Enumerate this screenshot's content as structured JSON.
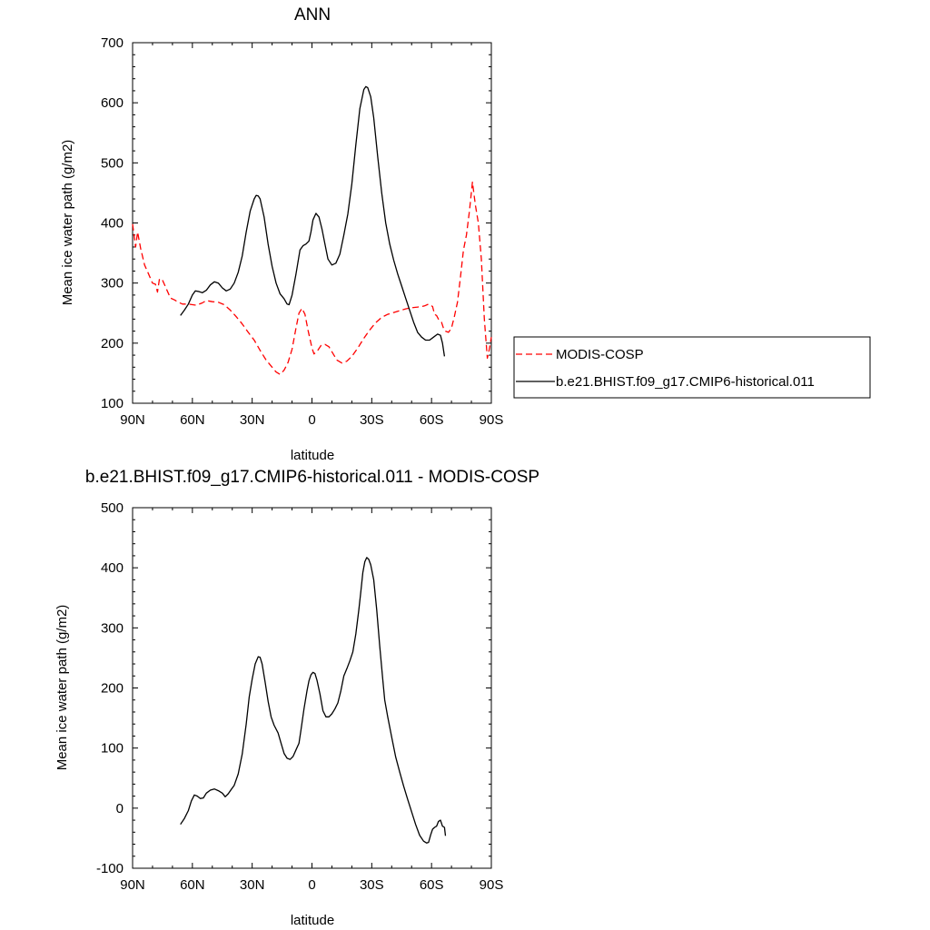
{
  "chart_data": [
    {
      "type": "line",
      "title": "ANN",
      "xlabel": "latitude",
      "ylabel": "Mean ice water path (g/m2)",
      "xlim": [
        90,
        -90
      ],
      "ylim": [
        100,
        700
      ],
      "x_ticks": [
        90,
        60,
        30,
        0,
        -30,
        -60,
        -90
      ],
      "x_tick_labels": [
        "90N",
        "60N",
        "30N",
        "0",
        "30S",
        "60S",
        "90S"
      ],
      "y_ticks": [
        100,
        200,
        300,
        400,
        500,
        600,
        700
      ],
      "y_tick_labels": [
        "100",
        "200",
        "300",
        "400",
        "500",
        "600",
        "700"
      ],
      "grid": false,
      "legend_position": "right",
      "series": [
        {
          "name": "MODIS-COSP",
          "color": "#ff0000",
          "dash": "dashed",
          "points": [
            [
              90,
              398
            ],
            [
              88.5,
              360
            ],
            [
              87.5,
              385
            ],
            [
              86,
              358
            ],
            [
              84,
              330
            ],
            [
              82,
              315
            ],
            [
              80,
              300
            ],
            [
              78.5,
              298
            ],
            [
              77.5,
              285
            ],
            [
              76.5,
              307
            ],
            [
              75,
              305
            ],
            [
              73,
              290
            ],
            [
              71,
              275
            ],
            [
              69,
              272
            ],
            [
              67,
              268
            ],
            [
              65,
              265
            ],
            [
              62,
              265
            ],
            [
              58,
              263
            ],
            [
              55,
              267
            ],
            [
              53,
              271
            ],
            [
              50,
              269
            ],
            [
              47,
              268
            ],
            [
              44,
              264
            ],
            [
              41,
              255
            ],
            [
              38,
              244
            ],
            [
              35,
              232
            ],
            [
              32,
              218
            ],
            [
              29,
              205
            ],
            [
              26,
              188
            ],
            [
              23,
              172
            ],
            [
              20,
              160
            ],
            [
              18,
              152
            ],
            [
              16,
              148
            ],
            [
              14,
              155
            ],
            [
              12,
              168
            ],
            [
              10,
              190
            ],
            [
              8,
              225
            ],
            [
              6.5,
              250
            ],
            [
              5,
              258
            ],
            [
              3.5,
              248
            ],
            [
              2,
              222
            ],
            [
              0,
              192
            ],
            [
              -1,
              182
            ],
            [
              -2.5,
              186
            ],
            [
              -4.5,
              196
            ],
            [
              -6.5,
              198
            ],
            [
              -8.5,
              194
            ],
            [
              -10.5,
              183
            ],
            [
              -12.5,
              172
            ],
            [
              -15,
              167
            ],
            [
              -17.5,
              170
            ],
            [
              -20,
              178
            ],
            [
              -23,
              192
            ],
            [
              -26,
              208
            ],
            [
              -29,
              222
            ],
            [
              -32,
              234
            ],
            [
              -35,
              243
            ],
            [
              -38,
              248
            ],
            [
              -41,
              251
            ],
            [
              -44,
              254
            ],
            [
              -47,
              257
            ],
            [
              -50,
              259
            ],
            [
              -53,
              260
            ],
            [
              -55,
              261
            ],
            [
              -56.5,
              262
            ],
            [
              -58.5,
              265
            ],
            [
              -60.5,
              261
            ],
            [
              -61.5,
              248
            ],
            [
              -62.5,
              246
            ],
            [
              -63.5,
              240
            ],
            [
              -65,
              235
            ],
            [
              -66,
              225
            ],
            [
              -67,
              220
            ],
            [
              -68.5,
              218
            ],
            [
              -70,
              225
            ],
            [
              -71.5,
              245
            ],
            [
              -73,
              268
            ],
            [
              -74.5,
              310
            ],
            [
              -76,
              355
            ],
            [
              -77.5,
              380
            ],
            [
              -79,
              420
            ],
            [
              -80.5,
              468
            ],
            [
              -82,
              430
            ],
            [
              -83.5,
              400
            ],
            [
              -85,
              340
            ],
            [
              -86.5,
              240
            ],
            [
              -88,
              175
            ],
            [
              -89,
              190
            ],
            [
              -90,
              210
            ]
          ]
        },
        {
          "name": "b.e21.BHIST.f09_g17.CMIP6-historical.011",
          "color": "#000000",
          "dash": "solid",
          "points": [
            [
              66,
              246
            ],
            [
              64,
              255
            ],
            [
              62,
              265
            ],
            [
              60,
              280
            ],
            [
              58.5,
              287
            ],
            [
              57,
              286
            ],
            [
              55,
              284
            ],
            [
              53,
              288
            ],
            [
              51,
              297
            ],
            [
              49,
              302
            ],
            [
              47,
              300
            ],
            [
              45,
              292
            ],
            [
              43,
              287
            ],
            [
              41,
              290
            ],
            [
              39,
              300
            ],
            [
              37,
              318
            ],
            [
              35,
              345
            ],
            [
              33,
              385
            ],
            [
              31,
              420
            ],
            [
              29,
              440
            ],
            [
              28,
              446
            ],
            [
              27,
              445
            ],
            [
              26,
              440
            ],
            [
              24,
              410
            ],
            [
              22,
              365
            ],
            [
              20,
              328
            ],
            [
              18,
              300
            ],
            [
              16,
              282
            ],
            [
              14,
              274
            ],
            [
              12.5,
              265
            ],
            [
              11.5,
              264
            ],
            [
              10,
              280
            ],
            [
              8,
              315
            ],
            [
              6,
              355
            ],
            [
              4.5,
              362
            ],
            [
              3,
              365
            ],
            [
              1.5,
              370
            ],
            [
              0.5,
              385
            ],
            [
              -0.5,
              405
            ],
            [
              -2,
              416
            ],
            [
              -3.5,
              410
            ],
            [
              -5,
              390
            ],
            [
              -6.5,
              365
            ],
            [
              -8,
              340
            ],
            [
              -10,
              330
            ],
            [
              -12,
              333
            ],
            [
              -14,
              348
            ],
            [
              -16,
              380
            ],
            [
              -18,
              415
            ],
            [
              -20,
              465
            ],
            [
              -22,
              530
            ],
            [
              -24,
              590
            ],
            [
              -26,
              622
            ],
            [
              -27,
              627
            ],
            [
              -28,
              625
            ],
            [
              -29.5,
              610
            ],
            [
              -31,
              575
            ],
            [
              -33,
              510
            ],
            [
              -35,
              450
            ],
            [
              -37,
              400
            ],
            [
              -39,
              365
            ],
            [
              -41,
              338
            ],
            [
              -43,
              315
            ],
            [
              -45,
              295
            ],
            [
              -47,
              275
            ],
            [
              -49,
              255
            ],
            [
              -51,
              235
            ],
            [
              -53,
              218
            ],
            [
              -55,
              210
            ],
            [
              -57,
              205
            ],
            [
              -59,
              205
            ],
            [
              -61,
              210
            ],
            [
              -63,
              215
            ],
            [
              -64.5,
              213
            ],
            [
              -65.5,
              200
            ],
            [
              -66.5,
              178
            ]
          ]
        }
      ]
    },
    {
      "type": "line",
      "title": "b.e21.BHIST.f09_g17.CMIP6-historical.011 - MODIS-COSP",
      "xlabel": "latitude",
      "ylabel": "Mean ice water path (g/m2)",
      "xlim": [
        90,
        -90
      ],
      "ylim": [
        -100,
        500
      ],
      "x_ticks": [
        90,
        60,
        30,
        0,
        -30,
        -60,
        -90
      ],
      "x_tick_labels": [
        "90N",
        "60N",
        "30N",
        "0",
        "30S",
        "60S",
        "90S"
      ],
      "y_ticks": [
        -100,
        0,
        100,
        200,
        300,
        400,
        500
      ],
      "y_tick_labels": [
        "-100",
        "0",
        "100",
        "200",
        "300",
        "400",
        "500"
      ],
      "grid": false,
      "series": [
        {
          "color": "#000000",
          "dash": "solid",
          "points": [
            [
              66,
              -27
            ],
            [
              64,
              -17
            ],
            [
              62,
              -4
            ],
            [
              60.5,
              12
            ],
            [
              59,
              22
            ],
            [
              57.5,
              20
            ],
            [
              56,
              16
            ],
            [
              54.5,
              17
            ],
            [
              53,
              25
            ],
            [
              51,
              30
            ],
            [
              49,
              32
            ],
            [
              47,
              29
            ],
            [
              45,
              25
            ],
            [
              43.5,
              19
            ],
            [
              42,
              24
            ],
            [
              40.5,
              31
            ],
            [
              39,
              38
            ],
            [
              37,
              57
            ],
            [
              35,
              90
            ],
            [
              33,
              140
            ],
            [
              31.5,
              185
            ],
            [
              30,
              215
            ],
            [
              28.5,
              240
            ],
            [
              27,
              252
            ],
            [
              26,
              251
            ],
            [
              25,
              240
            ],
            [
              23.5,
              210
            ],
            [
              22,
              178
            ],
            [
              20.5,
              152
            ],
            [
              19,
              138
            ],
            [
              17,
              125
            ],
            [
              15.5,
              108
            ],
            [
              14,
              91
            ],
            [
              12.5,
              83
            ],
            [
              11,
              81
            ],
            [
              9.5,
              86
            ],
            [
              8,
              97
            ],
            [
              6.5,
              108
            ],
            [
              5.5,
              130
            ],
            [
              4,
              165
            ],
            [
              2.5,
              195
            ],
            [
              1.5,
              212
            ],
            [
              0.5,
              222
            ],
            [
              -0.5,
              226
            ],
            [
              -1.5,
              224
            ],
            [
              -2.5,
              213
            ],
            [
              -4,
              190
            ],
            [
              -5.5,
              162
            ],
            [
              -7,
              152
            ],
            [
              -8.5,
              152
            ],
            [
              -10,
              157
            ],
            [
              -11.5,
              165
            ],
            [
              -13,
              175
            ],
            [
              -14.5,
              195
            ],
            [
              -16,
              220
            ],
            [
              -17.5,
              232
            ],
            [
              -19,
              245
            ],
            [
              -20.5,
              260
            ],
            [
              -22,
              290
            ],
            [
              -23.5,
              330
            ],
            [
              -24.5,
              360
            ],
            [
              -25.5,
              392
            ],
            [
              -26.5,
              410
            ],
            [
              -27.5,
              417
            ],
            [
              -28.5,
              414
            ],
            [
              -29.5,
              405
            ],
            [
              -31,
              380
            ],
            [
              -32.5,
              330
            ],
            [
              -34,
              270
            ],
            [
              -35.5,
              215
            ],
            [
              -36.5,
              180
            ],
            [
              -38,
              152
            ],
            [
              -40,
              118
            ],
            [
              -42,
              85
            ],
            [
              -44,
              60
            ],
            [
              -46,
              37
            ],
            [
              -48,
              15
            ],
            [
              -50,
              -6
            ],
            [
              -52,
              -27
            ],
            [
              -54,
              -45
            ],
            [
              -56,
              -55
            ],
            [
              -57.5,
              -58
            ],
            [
              -58.5,
              -57
            ],
            [
              -59.5,
              -45
            ],
            [
              -60.5,
              -35
            ],
            [
              -61.5,
              -32
            ],
            [
              -62.5,
              -30
            ],
            [
              -63.5,
              -22
            ],
            [
              -64.5,
              -20
            ],
            [
              -65.5,
              -30
            ],
            [
              -66.5,
              -32
            ],
            [
              -67,
              -46
            ]
          ]
        }
      ]
    }
  ]
}
